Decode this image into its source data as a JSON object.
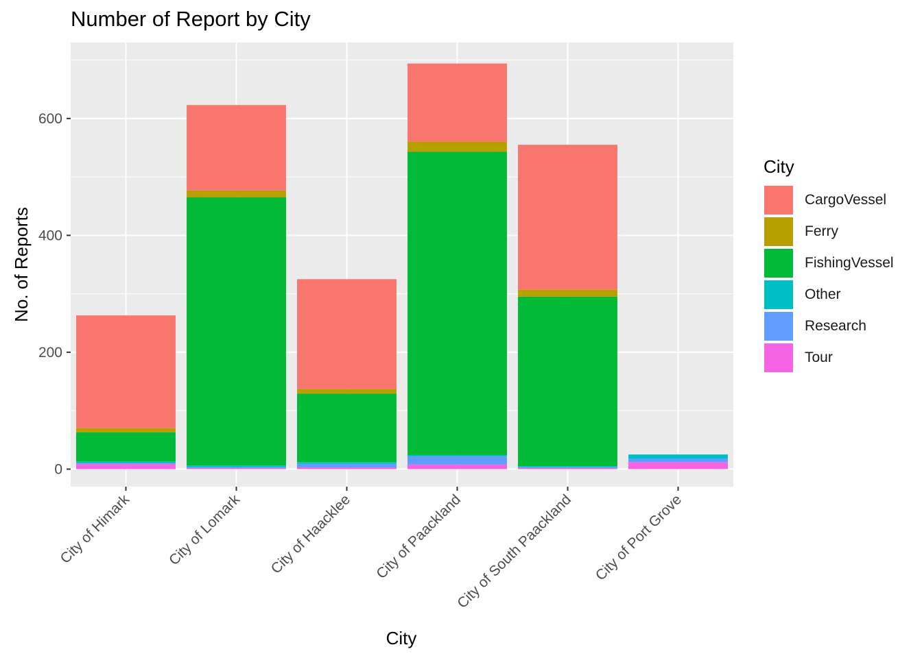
{
  "chart_data": {
    "type": "bar",
    "stacked": true,
    "title": "Number of Report by City",
    "xlabel": "City",
    "ylabel": "No. of Reports",
    "ylim": [
      -30,
      730
    ],
    "yticks": [
      0,
      200,
      400,
      600
    ],
    "grid": true,
    "legend_title": "City",
    "legend_position": "right",
    "categories": [
      "City of Himark",
      "City of Lomark",
      "City of Haacklee",
      "City of Paackland",
      "City of South Paackland",
      "City of Port Grove"
    ],
    "series": [
      {
        "name": "Tour",
        "color": "#F564E3",
        "values": [
          9,
          2,
          3,
          8,
          2,
          12
        ]
      },
      {
        "name": "Research",
        "color": "#619CFF",
        "values": [
          1,
          1,
          6,
          14,
          1,
          6
        ]
      },
      {
        "name": "Other",
        "color": "#00BFC4",
        "values": [
          3,
          3,
          3,
          2,
          2,
          7
        ]
      },
      {
        "name": "FishingVessel",
        "color": "#00BA38",
        "values": [
          50,
          459,
          117,
          519,
          290,
          0
        ]
      },
      {
        "name": "Ferry",
        "color": "#B79F00",
        "values": [
          7,
          12,
          8,
          17,
          12,
          0
        ]
      },
      {
        "name": "CargoVessel",
        "color": "#F8766D",
        "values": [
          193,
          146,
          188,
          134,
          248,
          0
        ]
      }
    ],
    "legend_order": [
      "CargoVessel",
      "Ferry",
      "FishingVessel",
      "Other",
      "Research",
      "Tour"
    ]
  },
  "colors": {
    "panel_bg": "#EBEBEB",
    "grid_major": "#FFFFFF",
    "axis_text": "#4D4D4D"
  }
}
